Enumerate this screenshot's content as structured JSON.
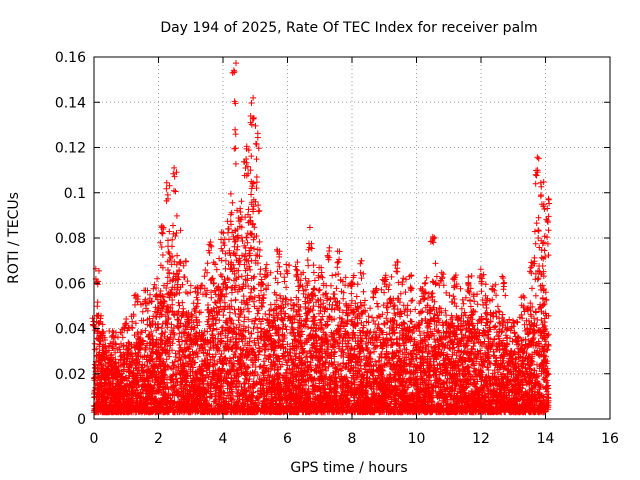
{
  "chart_data": {
    "type": "scatter",
    "title": "Day 194 of 2025, Rate Of TEC Index for receiver palm",
    "xlabel": "GPS time / hours",
    "ylabel": "ROTI / TECUs",
    "xlim": [
      0,
      16
    ],
    "ylim": [
      0,
      0.16
    ],
    "xticks": [
      0,
      2,
      4,
      6,
      8,
      10,
      12,
      14,
      16
    ],
    "yticks": [
      0,
      0.02,
      0.04,
      0.06,
      0.08,
      0.1,
      0.12,
      0.14,
      0.16
    ],
    "xtick_labels": [
      "0",
      "2",
      "4",
      "6",
      "8",
      "10",
      "12",
      "14",
      "16"
    ],
    "ytick_labels": [
      "0",
      "0.02",
      "0.04",
      "0.06",
      "0.08",
      "0.1",
      "0.12",
      "0.14",
      "0.16"
    ],
    "grid": true,
    "marker": "+",
    "color": "#ff0000",
    "series": [
      {
        "name": "ROTI",
        "envelope": {
          "x": [
            0.0,
            0.1,
            0.3,
            0.6,
            1.0,
            1.3,
            1.6,
            1.9,
            2.1,
            2.3,
            2.5,
            2.8,
            3.2,
            3.6,
            4.0,
            4.2,
            4.35,
            4.5,
            4.7,
            4.9,
            5.05,
            5.3,
            5.7,
            6.0,
            6.3,
            6.7,
            7.0,
            7.3,
            7.6,
            8.0,
            8.3,
            8.7,
            9.0,
            9.4,
            9.8,
            10.2,
            10.5,
            10.8,
            11.2,
            11.6,
            12.0,
            12.4,
            12.7,
            13.0,
            13.3,
            13.6,
            13.75,
            13.9,
            14.1
          ],
          "max": [
            0.045,
            0.067,
            0.04,
            0.04,
            0.045,
            0.057,
            0.057,
            0.06,
            0.087,
            0.105,
            0.112,
            0.07,
            0.06,
            0.08,
            0.085,
            0.09,
            0.159,
            0.095,
            0.12,
            0.145,
            0.13,
            0.07,
            0.075,
            0.07,
            0.07,
            0.085,
            0.07,
            0.08,
            0.075,
            0.065,
            0.07,
            0.06,
            0.065,
            0.072,
            0.065,
            0.06,
            0.088,
            0.065,
            0.065,
            0.063,
            0.068,
            0.06,
            0.065,
            0.045,
            0.055,
            0.07,
            0.116,
            0.106,
            0.098
          ]
        },
        "floor": 0.003,
        "point_count": 9000,
        "x_range": [
          0.0,
          14.1
        ]
      }
    ]
  }
}
